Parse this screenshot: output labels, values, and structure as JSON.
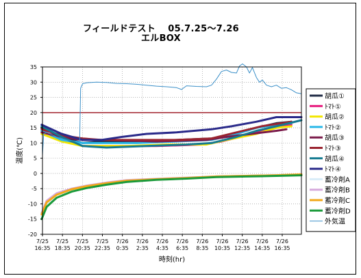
{
  "chart_data": {
    "type": "line",
    "title": "フィールドテスト　 05.7.25～7.26",
    "subtitle": "エルBOX",
    "xlabel": "時刻(hr)",
    "ylabel": "温度(℃)",
    "ylim": [
      -20,
      35
    ],
    "yticks": [
      35,
      30,
      25,
      20,
      15,
      10,
      5,
      0,
      -5,
      -10,
      -15,
      -20
    ],
    "xlim": [
      16.58,
      42.5
    ],
    "xticks": [
      {
        "t": 16.58,
        "l1": "7/25",
        "l2": "16:35"
      },
      {
        "t": 18.58,
        "l1": "7/25",
        "l2": "18:35"
      },
      {
        "t": 20.58,
        "l1": "7/25",
        "l2": "20:35"
      },
      {
        "t": 22.58,
        "l1": "7/25",
        "l2": "22:35"
      },
      {
        "t": 24.58,
        "l1": "7/26",
        "l2": "0:35"
      },
      {
        "t": 26.58,
        "l1": "7/26",
        "l2": "2:35"
      },
      {
        "t": 28.58,
        "l1": "7/26",
        "l2": "4:35"
      },
      {
        "t": 30.58,
        "l1": "7/26",
        "l2": "6:35"
      },
      {
        "t": 32.58,
        "l1": "7/26",
        "l2": "8:35"
      },
      {
        "t": 34.58,
        "l1": "7/26",
        "l2": "10:35"
      },
      {
        "t": 36.58,
        "l1": "7/26",
        "l2": "12:35"
      },
      {
        "t": 38.58,
        "l1": "7/26",
        "l2": "14:35"
      },
      {
        "t": 40.58,
        "l1": "7/26",
        "l2": "16:35"
      }
    ],
    "reference_line": {
      "y": 20,
      "color": "#a0202a"
    },
    "grid": "vertical-and-horizontal dotted",
    "legend_position": "right",
    "series": [
      {
        "name": "胡瓜①",
        "color": "#1f2a44",
        "width": 3,
        "points": [
          [
            16.5,
            15
          ],
          [
            18.5,
            12
          ],
          [
            20.6,
            10
          ],
          [
            22.5,
            10.5
          ],
          [
            26,
            10.5
          ],
          [
            30,
            11
          ],
          [
            33.5,
            11.5
          ],
          [
            36,
            13
          ],
          [
            38,
            15
          ],
          [
            40,
            16.5
          ],
          [
            41.5,
            17
          ]
        ]
      },
      {
        "name": "ﾄﾏﾄ①",
        "color": "#e6157a",
        "width": 3,
        "points": [
          [
            16.5,
            14
          ],
          [
            18.5,
            11
          ],
          [
            20.6,
            9
          ],
          [
            24,
            9
          ],
          [
            28,
            9
          ],
          [
            32.5,
            9.5
          ],
          [
            34.5,
            10.5
          ],
          [
            37,
            12.5
          ],
          [
            40,
            15
          ],
          [
            41.5,
            16
          ]
        ]
      },
      {
        "name": "胡瓜②",
        "color": "#f2e600",
        "width": 3,
        "points": [
          [
            16.5,
            13
          ],
          [
            18.5,
            10.5
          ],
          [
            20.6,
            9
          ],
          [
            25,
            9
          ],
          [
            29,
            9.5
          ],
          [
            33,
            9.5
          ],
          [
            35,
            11
          ],
          [
            38,
            13
          ],
          [
            40,
            15
          ],
          [
            41.5,
            15.5
          ]
        ]
      },
      {
        "name": "ﾄﾏﾄ②",
        "color": "#27b7e8",
        "width": 3,
        "points": [
          [
            16.5,
            14
          ],
          [
            18.5,
            11
          ],
          [
            20.6,
            10
          ],
          [
            26,
            10
          ],
          [
            30,
            10.5
          ],
          [
            33.5,
            11
          ],
          [
            36,
            13
          ],
          [
            38,
            15
          ],
          [
            40,
            16
          ],
          [
            41.5,
            16.5
          ]
        ]
      },
      {
        "name": "胡瓜③",
        "color": "#7a1a4a",
        "width": 3,
        "points": [
          [
            16.5,
            13.5
          ],
          [
            18.5,
            12
          ],
          [
            20.6,
            11
          ],
          [
            23,
            11
          ],
          [
            28,
            10.5
          ],
          [
            33,
            11
          ],
          [
            35,
            12
          ],
          [
            37.5,
            13
          ],
          [
            40,
            14
          ],
          [
            41,
            14.5
          ]
        ]
      },
      {
        "name": "ﾄﾏﾄ③",
        "color": "#9a2430",
        "width": 3,
        "points": [
          [
            16.5,
            14.5
          ],
          [
            18.5,
            12.5
          ],
          [
            20.6,
            11.5
          ],
          [
            22.5,
            11
          ],
          [
            26,
            11
          ],
          [
            30,
            11
          ],
          [
            33.5,
            11.5
          ],
          [
            36,
            13.5
          ],
          [
            38.5,
            15.5
          ],
          [
            41.5,
            17
          ]
        ]
      },
      {
        "name": "胡瓜④",
        "color": "#157a90",
        "width": 3,
        "points": [
          [
            16.5,
            15.5
          ],
          [
            18.5,
            12
          ],
          [
            20.6,
            9
          ],
          [
            23,
            8.5
          ],
          [
            27,
            9
          ],
          [
            31,
            9.5
          ],
          [
            33.5,
            10
          ],
          [
            36,
            12
          ],
          [
            38,
            14
          ],
          [
            40,
            15.5
          ],
          [
            42.5,
            17.5
          ]
        ]
      },
      {
        "name": "ﾄﾏﾄ④",
        "color": "#2a2a8a",
        "width": 3,
        "points": [
          [
            16.5,
            16
          ],
          [
            18.5,
            13
          ],
          [
            20.6,
            11
          ],
          [
            22.5,
            11
          ],
          [
            24.5,
            12
          ],
          [
            27,
            13
          ],
          [
            30,
            13.5
          ],
          [
            33.5,
            14.5
          ],
          [
            35.5,
            15.5
          ],
          [
            38,
            17
          ],
          [
            40,
            18.5
          ],
          [
            42.5,
            18.5
          ]
        ]
      },
      {
        "name": "蓄冷剤A",
        "color": "#d8ecf8",
        "width": 3,
        "points": [
          [
            16.5,
            -14
          ],
          [
            17,
            -10
          ],
          [
            18,
            -7
          ],
          [
            19.5,
            -5.5
          ],
          [
            21,
            -4.5
          ],
          [
            23,
            -3.5
          ],
          [
            25,
            -2.5
          ],
          [
            28,
            -2
          ],
          [
            31,
            -1.5
          ],
          [
            34,
            -1
          ],
          [
            37,
            -0.8
          ],
          [
            40,
            -0.6
          ],
          [
            42.5,
            -0.5
          ]
        ]
      },
      {
        "name": "蓄冷剤B",
        "color": "#d6a9dc",
        "width": 3,
        "points": [
          [
            16.5,
            -13
          ],
          [
            17,
            -9
          ],
          [
            18,
            -6.5
          ],
          [
            19.5,
            -5
          ],
          [
            21,
            -4
          ],
          [
            23,
            -3
          ],
          [
            25,
            -2.2
          ],
          [
            28,
            -1.8
          ],
          [
            31,
            -1.4
          ],
          [
            34,
            -1
          ],
          [
            37,
            -0.8
          ],
          [
            40,
            -0.6
          ],
          [
            42.5,
            -0.5
          ]
        ]
      },
      {
        "name": "蓄冷剤C",
        "color": "#f2a818",
        "width": 3,
        "points": [
          [
            16.5,
            -13.5
          ],
          [
            17,
            -9.5
          ],
          [
            18,
            -7
          ],
          [
            19.5,
            -5.2
          ],
          [
            21,
            -4.2
          ],
          [
            23,
            -3.2
          ],
          [
            25,
            -2.4
          ],
          [
            28,
            -1.9
          ],
          [
            31,
            -1.5
          ],
          [
            34,
            -1
          ],
          [
            37,
            -0.8
          ],
          [
            40,
            -0.6
          ],
          [
            42.5,
            -0.3
          ]
        ]
      },
      {
        "name": "蓄冷剤D",
        "color": "#1a9a3a",
        "width": 3,
        "points": [
          [
            16.5,
            -15
          ],
          [
            17,
            -11
          ],
          [
            18,
            -8
          ],
          [
            19.5,
            -6
          ],
          [
            21,
            -4.8
          ],
          [
            23,
            -3.7
          ],
          [
            25,
            -2.8
          ],
          [
            28,
            -2.1
          ],
          [
            31,
            -1.7
          ],
          [
            34,
            -1.2
          ],
          [
            37,
            -1
          ],
          [
            40,
            -0.8
          ],
          [
            42.5,
            -0.6
          ]
        ]
      },
      {
        "name": "外気温",
        "color": "#3a8fc8",
        "width": 1,
        "points": [
          [
            16.58,
            6
          ],
          [
            16.7,
            13
          ],
          [
            17,
            13.5
          ],
          [
            18,
            12
          ],
          [
            19,
            11
          ],
          [
            20.3,
            10.5
          ],
          [
            20.4,
            28
          ],
          [
            20.6,
            29.5
          ],
          [
            21,
            29.8
          ],
          [
            22,
            30
          ],
          [
            23,
            29.9
          ],
          [
            24,
            29.6
          ],
          [
            25,
            29.5
          ],
          [
            26,
            29.3
          ],
          [
            27,
            29
          ],
          [
            28,
            28.7
          ],
          [
            29,
            28.5
          ],
          [
            30,
            28.2
          ],
          [
            30.5,
            27.6
          ],
          [
            31,
            28.8
          ],
          [
            32,
            28.6
          ],
          [
            33,
            28.5
          ],
          [
            33.5,
            29
          ],
          [
            34,
            31
          ],
          [
            34.5,
            33.5
          ],
          [
            35,
            34
          ],
          [
            35.5,
            33.2
          ],
          [
            36,
            33
          ],
          [
            36.3,
            35.3
          ],
          [
            36.6,
            36
          ],
          [
            37,
            35
          ],
          [
            37.3,
            33
          ],
          [
            37.6,
            34.8
          ],
          [
            38,
            31.5
          ],
          [
            38.3,
            30
          ],
          [
            38.6,
            30.7
          ],
          [
            39,
            29
          ],
          [
            39.5,
            28.5
          ],
          [
            40,
            29
          ],
          [
            40.5,
            28
          ],
          [
            41,
            28.2
          ],
          [
            41.5,
            27.5
          ],
          [
            42,
            26.5
          ],
          [
            42.5,
            26.2
          ]
        ]
      }
    ]
  }
}
